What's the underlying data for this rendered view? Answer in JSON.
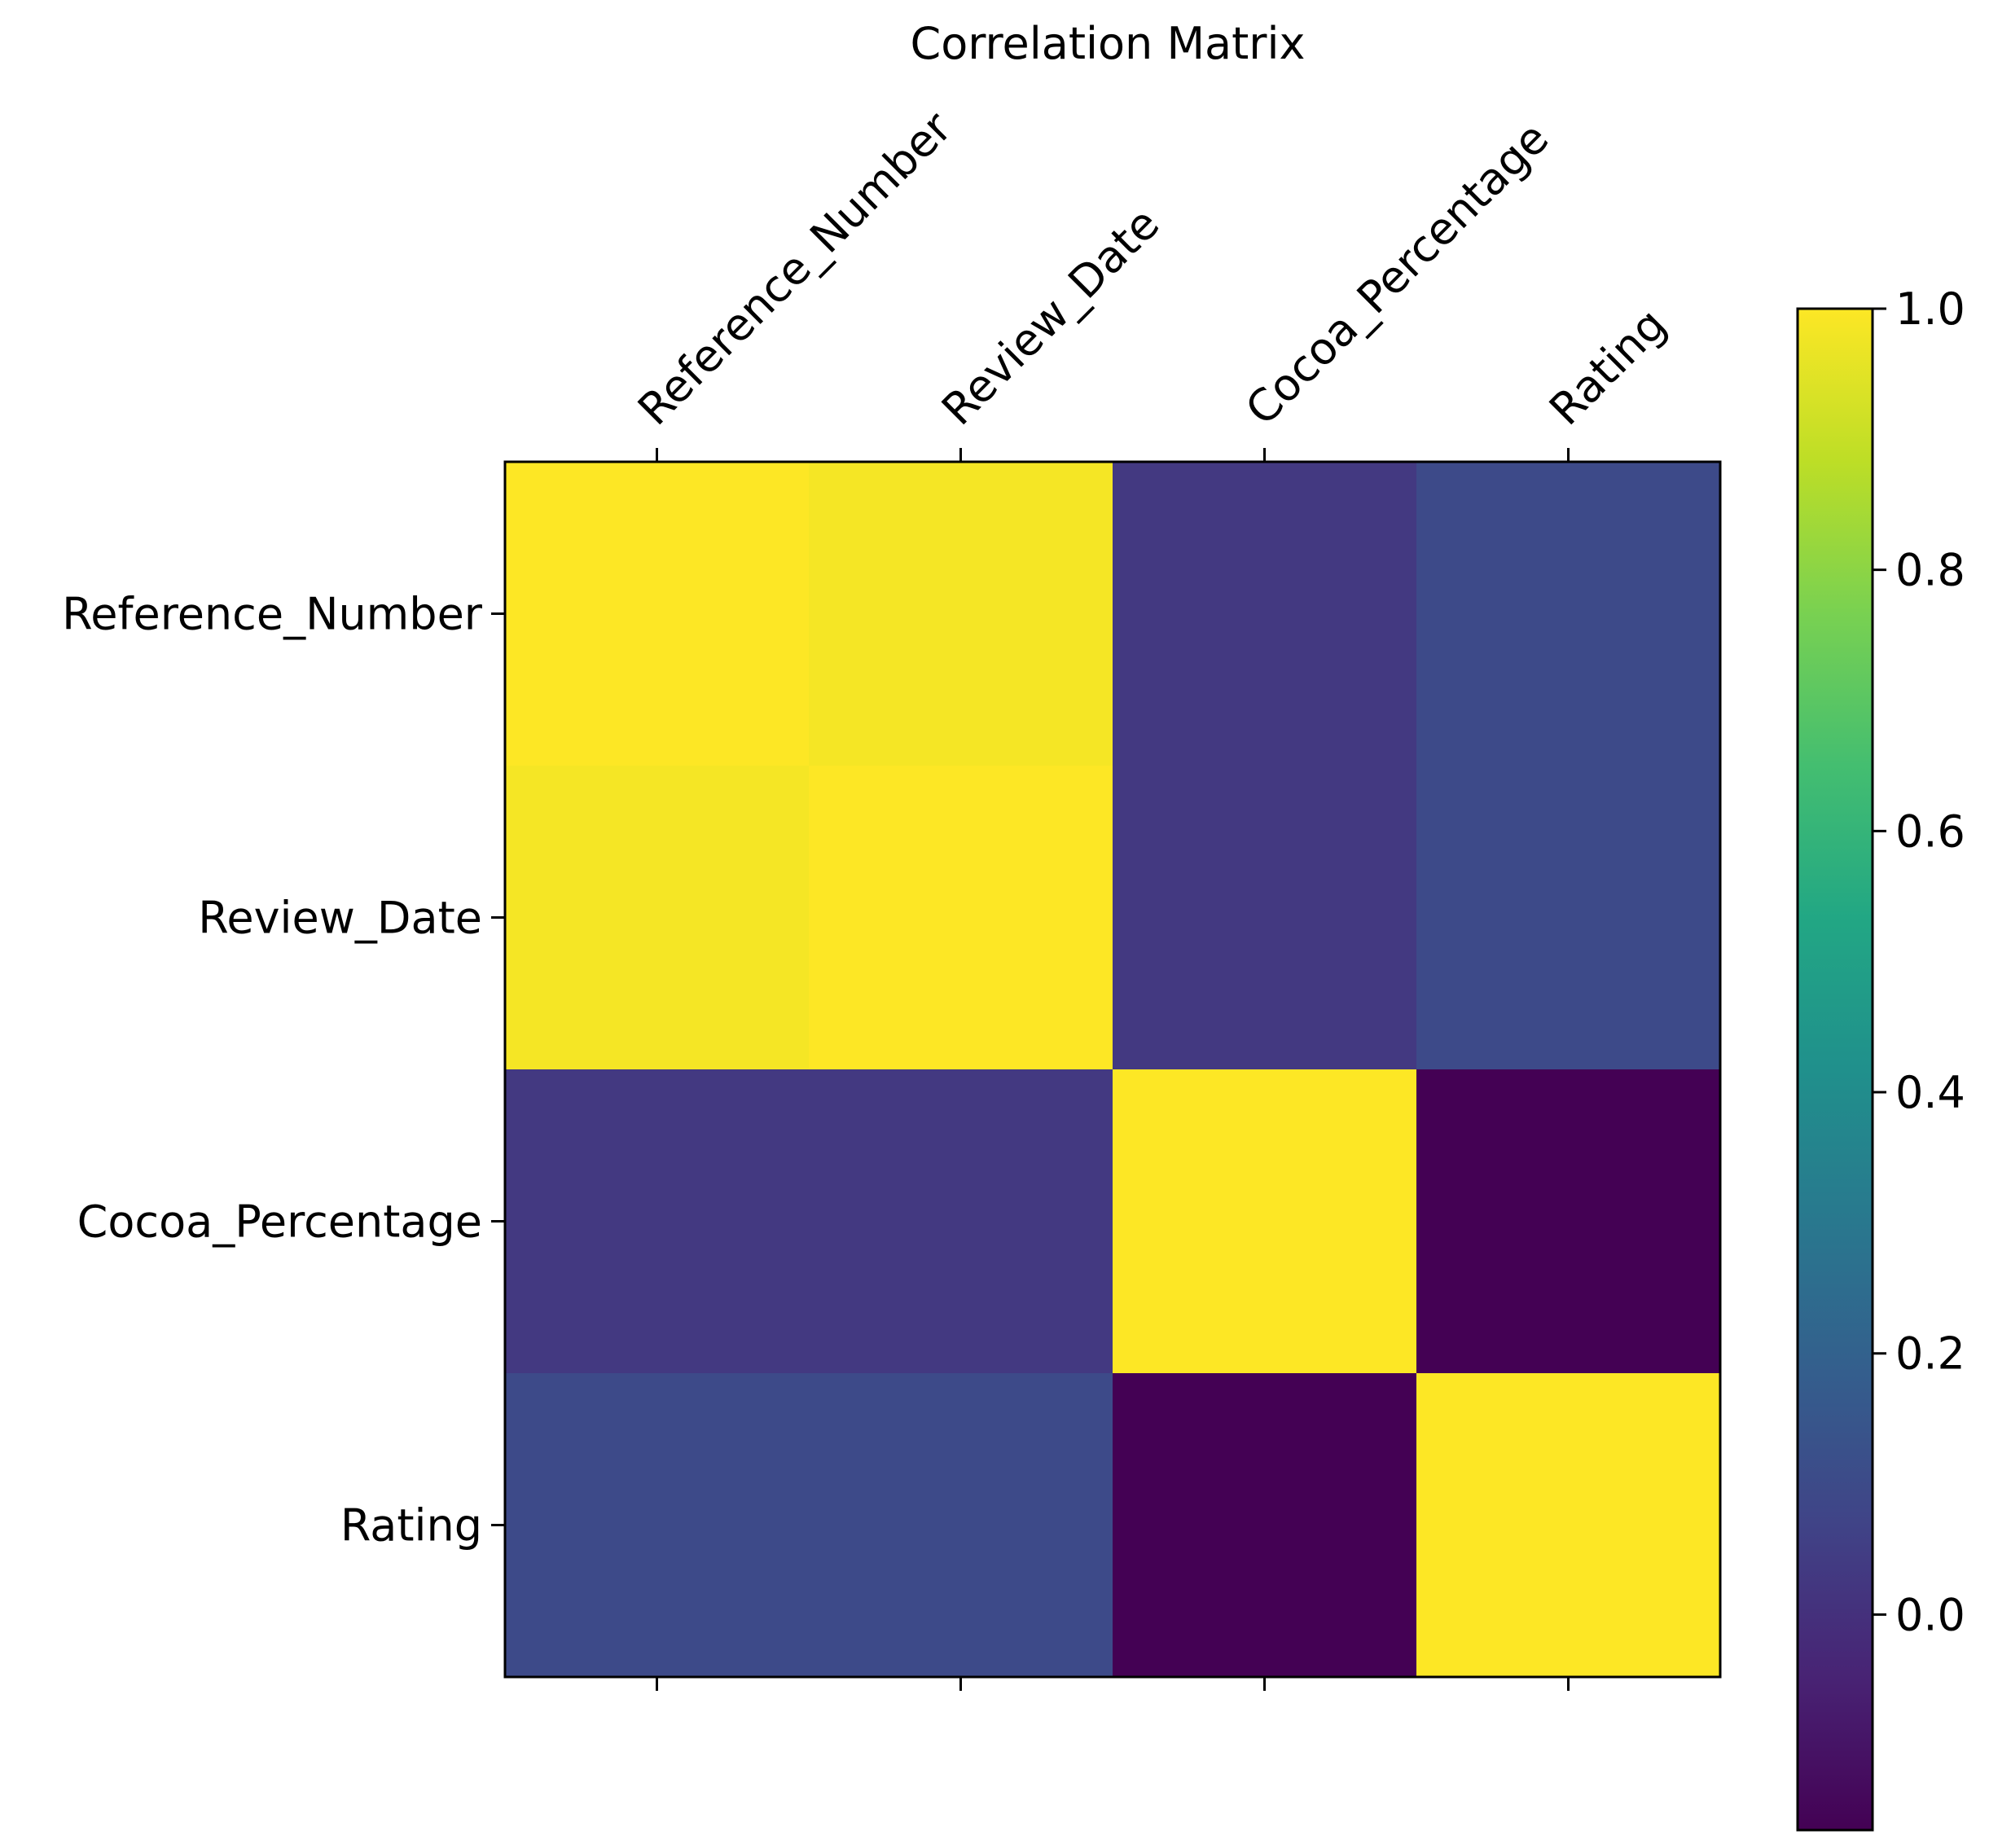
{
  "chart_data": {
    "type": "heatmap",
    "title": "Correlation Matrix",
    "x_categories": [
      "Reference_Number",
      "Review_Date",
      "Cocoa_Percentage",
      "Rating"
    ],
    "y_categories": [
      "Reference_Number",
      "Review_Date",
      "Cocoa_Percentage",
      "Rating"
    ],
    "values": [
      [
        1.0,
        0.985,
        0.03,
        0.1
      ],
      [
        0.985,
        1.0,
        0.03,
        0.1
      ],
      [
        0.03,
        0.03,
        1.0,
        -0.165
      ],
      [
        0.1,
        0.1,
        -0.165,
        1.0
      ]
    ],
    "colormap": "viridis",
    "vmin": -0.165,
    "vmax": 1.0,
    "colorbar_ticks": [
      "0.0",
      "0.2",
      "0.4",
      "0.6",
      "0.8",
      "1.0"
    ],
    "colorbar_tick_values": [
      0.0,
      0.2,
      0.4,
      0.6,
      0.8,
      1.0
    ],
    "x_tick_position": "top",
    "x_tick_rotation": -45,
    "grid": false
  }
}
